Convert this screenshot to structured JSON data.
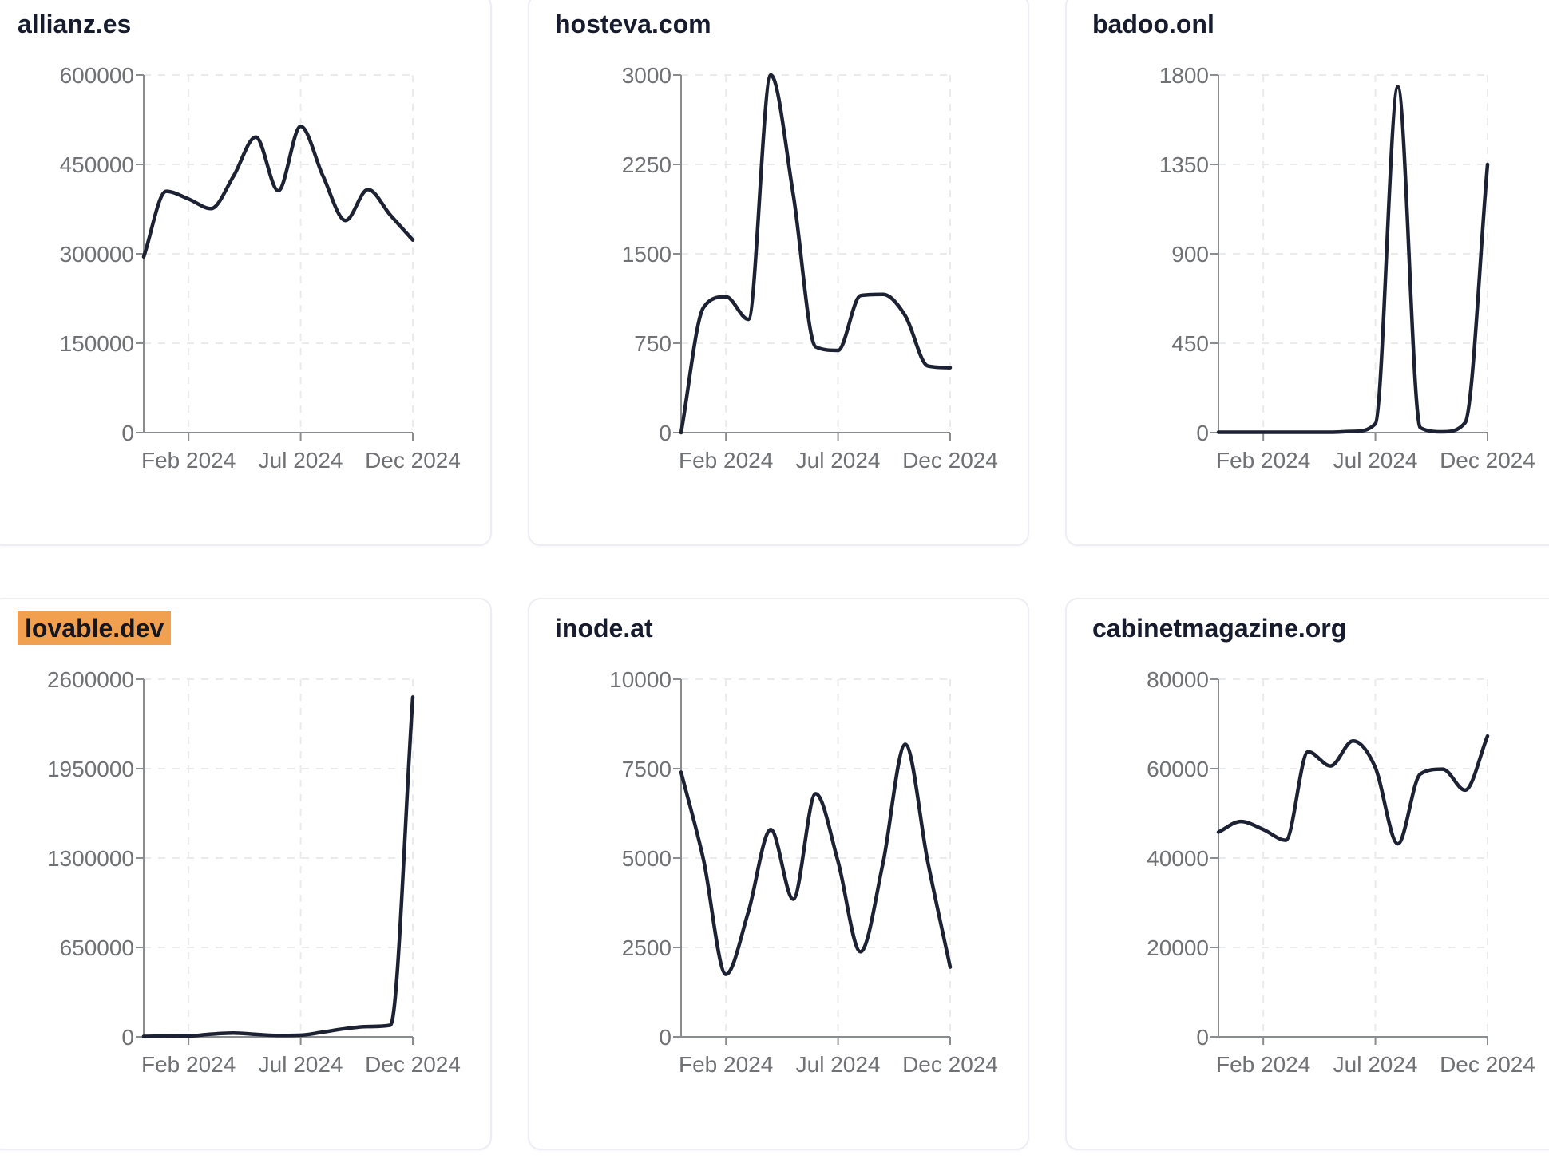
{
  "colors": {
    "line": "#1c2233",
    "title": "#161c2e",
    "axis": "#8a8d90",
    "tick_label": "#6f7174",
    "grid": "#ebebee",
    "highlight": "#f0a04f",
    "card_border": "#eceef4",
    "card_bg": "#ffffff",
    "page_bg": "#ffffff"
  },
  "chart_data": [
    {
      "type": "line",
      "title": "allianz.es",
      "highlighted": false,
      "x": [
        "Dec 2023",
        "Jan 2024",
        "Feb 2024",
        "Mar 2024",
        "Apr 2024",
        "May 2024",
        "Jun 2024",
        "Jul 2024",
        "Aug 2024",
        "Sep 2024",
        "Oct 2024",
        "Nov 2024",
        "Dec 2024"
      ],
      "values": [
        295000,
        405000,
        392000,
        376000,
        430000,
        496000,
        406000,
        514000,
        430000,
        356000,
        408000,
        365000,
        323000
      ],
      "ylim": [
        0,
        600000
      ],
      "y_ticks": [
        0,
        150000,
        300000,
        450000,
        600000
      ],
      "x_tick_labels": [
        "Feb 2024",
        "Jul 2024",
        "Dec 2024"
      ],
      "x_tick_indices": [
        2,
        7,
        12
      ],
      "grid": "dashed",
      "legend": "none"
    },
    {
      "type": "line",
      "title": "hosteva.com",
      "highlighted": false,
      "x": [
        "Dec 2023",
        "Jan 2024",
        "Feb 2024",
        "Mar 2024",
        "Apr 2024",
        "May 2024",
        "Jun 2024",
        "Jul 2024",
        "Aug 2024",
        "Sep 2024",
        "Oct 2024",
        "Nov 2024",
        "Dec 2024"
      ],
      "values": [
        0,
        1050,
        1140,
        950,
        3000,
        2000,
        720,
        690,
        1150,
        1160,
        980,
        560,
        545
      ],
      "ylim": [
        0,
        3000
      ],
      "y_ticks": [
        0,
        750,
        1500,
        2250,
        3000
      ],
      "x_tick_labels": [
        "Feb 2024",
        "Jul 2024",
        "Dec 2024"
      ],
      "x_tick_indices": [
        2,
        7,
        12
      ],
      "grid": "dashed",
      "legend": "none"
    },
    {
      "type": "line",
      "title": "badoo.onl",
      "highlighted": false,
      "x": [
        "Dec 2023",
        "Jan 2024",
        "Feb 2024",
        "Mar 2024",
        "Apr 2024",
        "May 2024",
        "Jun 2024",
        "Jul 2024",
        "Aug 2024",
        "Sep 2024",
        "Oct 2024",
        "Nov 2024",
        "Dec 2024"
      ],
      "values": [
        2,
        2,
        2,
        2,
        2,
        2,
        6,
        45,
        1740,
        25,
        4,
        50,
        1350
      ],
      "ylim": [
        0,
        1800
      ],
      "y_ticks": [
        0,
        450,
        900,
        1350,
        1800
      ],
      "x_tick_labels": [
        "Feb 2024",
        "Jul 2024",
        "Dec 2024"
      ],
      "x_tick_indices": [
        2,
        7,
        12
      ],
      "grid": "dashed",
      "legend": "none"
    },
    {
      "type": "line",
      "title": "lovable.dev",
      "highlighted": true,
      "x": [
        "Dec 2023",
        "Jan 2024",
        "Feb 2024",
        "Mar 2024",
        "Apr 2024",
        "May 2024",
        "Jun 2024",
        "Jul 2024",
        "Aug 2024",
        "Sep 2024",
        "Oct 2024",
        "Nov 2024",
        "Dec 2024"
      ],
      "values": [
        3000,
        5000,
        6000,
        20000,
        28000,
        18000,
        10000,
        12000,
        35000,
        60000,
        75000,
        85000,
        2470000
      ],
      "ylim": [
        0,
        2600000
      ],
      "y_ticks": [
        0,
        650000,
        1300000,
        1950000,
        2600000
      ],
      "x_tick_labels": [
        "Feb 2024",
        "Jul 2024",
        "Dec 2024"
      ],
      "x_tick_indices": [
        2,
        7,
        12
      ],
      "grid": "dashed",
      "legend": "none"
    },
    {
      "type": "line",
      "title": "inode.at",
      "highlighted": false,
      "x": [
        "Dec 2023",
        "Jan 2024",
        "Feb 2024",
        "Mar 2024",
        "Apr 2024",
        "May 2024",
        "Jun 2024",
        "Jul 2024",
        "Aug 2024",
        "Sep 2024",
        "Oct 2024",
        "Nov 2024",
        "Dec 2024"
      ],
      "values": [
        7400,
        4950,
        1750,
        3500,
        5800,
        3850,
        6800,
        4900,
        2380,
        4850,
        8180,
        4900,
        1950
      ],
      "ylim": [
        0,
        10000
      ],
      "y_ticks": [
        0,
        2500,
        5000,
        7500,
        10000
      ],
      "x_tick_labels": [
        "Feb 2024",
        "Jul 2024",
        "Dec 2024"
      ],
      "x_tick_indices": [
        2,
        7,
        12
      ],
      "grid": "dashed",
      "legend": "none"
    },
    {
      "type": "line",
      "title": "cabinetmagazine.org",
      "highlighted": false,
      "x": [
        "Dec 2023",
        "Jan 2024",
        "Feb 2024",
        "Mar 2024",
        "Apr 2024",
        "May 2024",
        "Jun 2024",
        "Jul 2024",
        "Aug 2024",
        "Sep 2024",
        "Oct 2024",
        "Nov 2024",
        "Dec 2024"
      ],
      "values": [
        45800,
        48200,
        46400,
        44000,
        63800,
        60600,
        66200,
        60200,
        43200,
        58800,
        59900,
        55200,
        67300
      ],
      "ylim": [
        0,
        80000
      ],
      "y_ticks": [
        0,
        20000,
        40000,
        60000,
        80000
      ],
      "x_tick_labels": [
        "Feb 2024",
        "Jul 2024",
        "Dec 2024"
      ],
      "x_tick_indices": [
        2,
        7,
        12
      ],
      "grid": "dashed",
      "legend": "none"
    }
  ]
}
